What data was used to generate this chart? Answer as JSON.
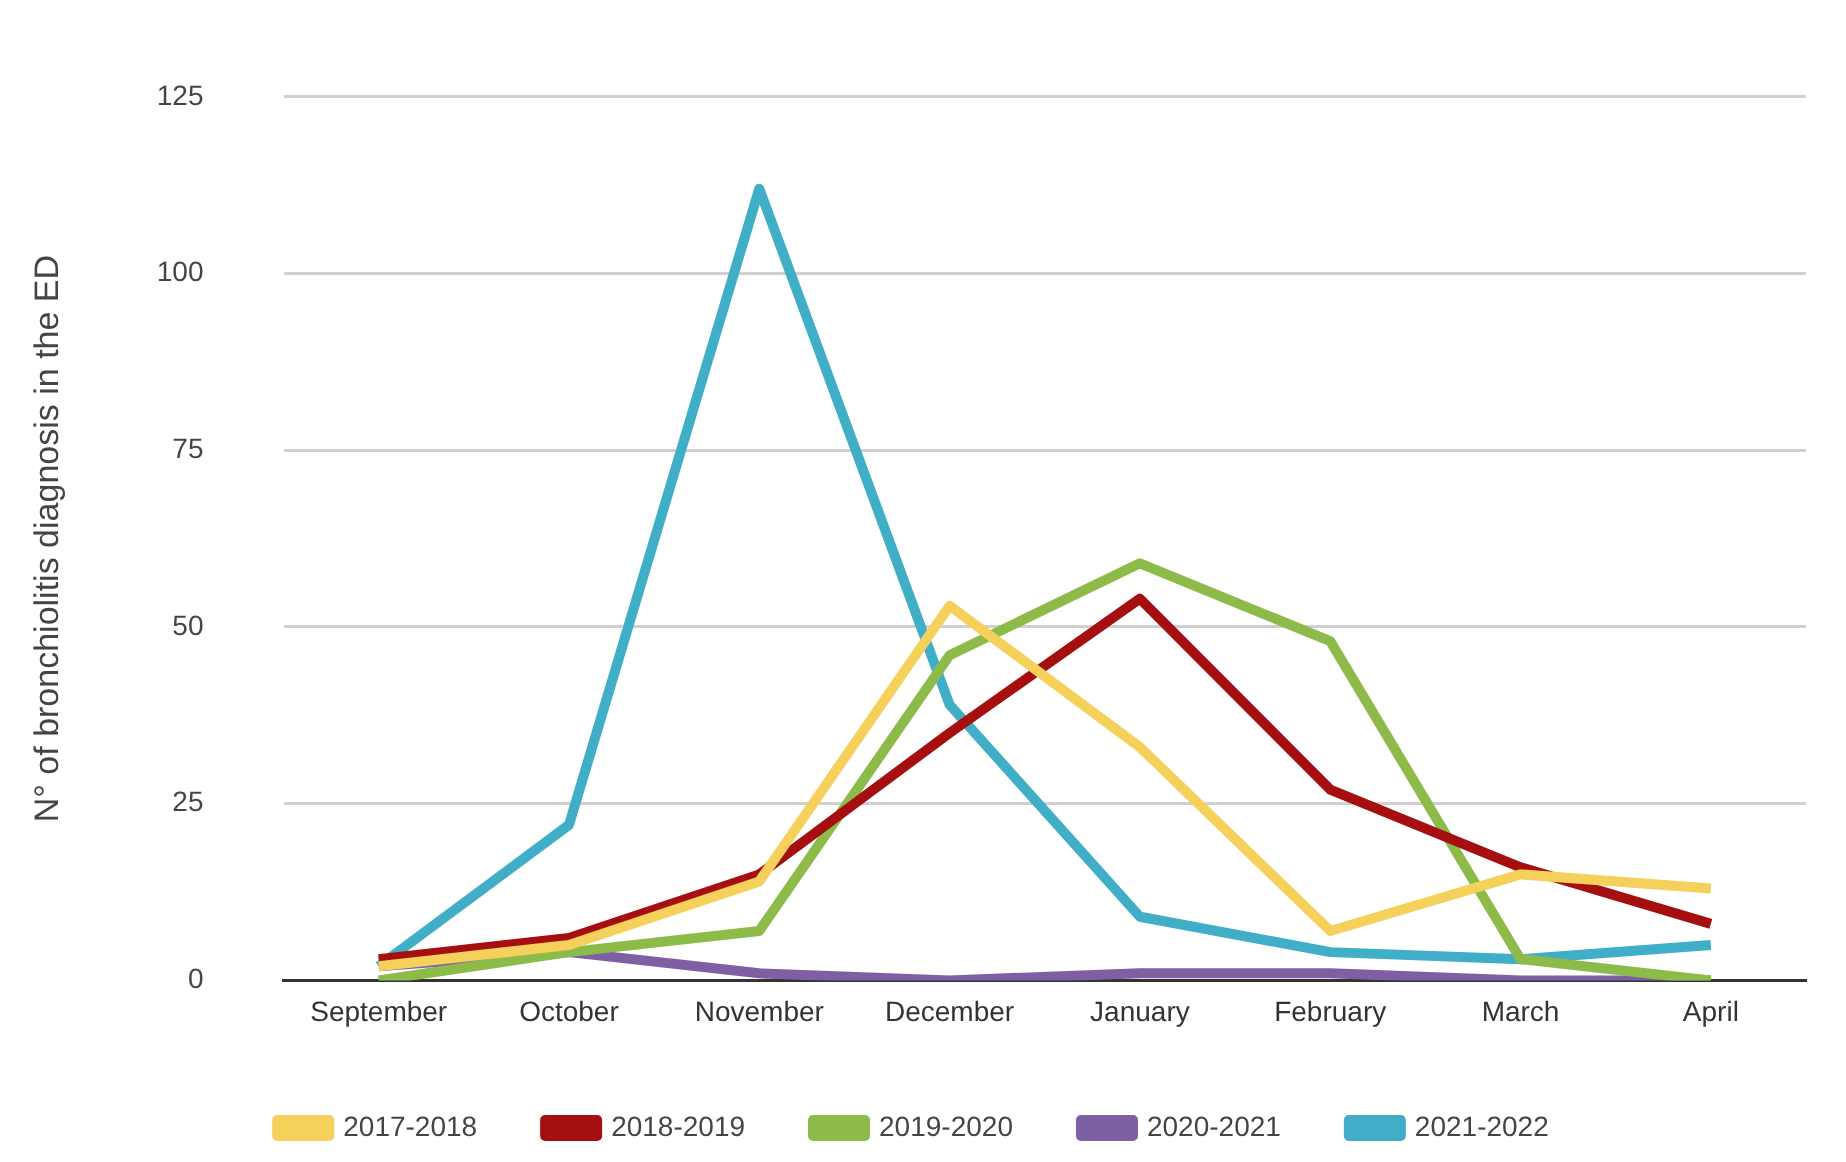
{
  "chart_data": {
    "type": "line",
    "ylabel": "N° of bronchiolitis diagnosis in the ED",
    "categories": [
      "September",
      "October",
      "November",
      "December",
      "January",
      "February",
      "March",
      "April"
    ],
    "series": [
      {
        "name": "2017-2018",
        "color": "#f5d05a",
        "values": [
          2,
          5,
          14,
          53,
          33,
          7,
          15,
          13
        ]
      },
      {
        "name": "2018-2019",
        "color": "#a50f0f",
        "values": [
          3,
          6,
          15,
          35,
          54,
          27,
          16,
          8
        ]
      },
      {
        "name": "2019-2020",
        "color": "#8dbb4a",
        "values": [
          0,
          4,
          7,
          46,
          59,
          48,
          3,
          0
        ]
      },
      {
        "name": "2020-2021",
        "color": "#7f5fa3",
        "values": [
          2,
          4,
          1,
          0,
          1,
          1,
          0,
          0
        ]
      },
      {
        "name": "2021-2022",
        "color": "#3faec6",
        "values": [
          2,
          22,
          112,
          39,
          9,
          4,
          3,
          5
        ]
      }
    ],
    "ylim": [
      0,
      125
    ],
    "yticks": [
      0,
      25,
      50,
      75,
      100,
      125
    ],
    "grid": "y",
    "legend": "bottom",
    "marker": "none",
    "line_style": "solid"
  }
}
